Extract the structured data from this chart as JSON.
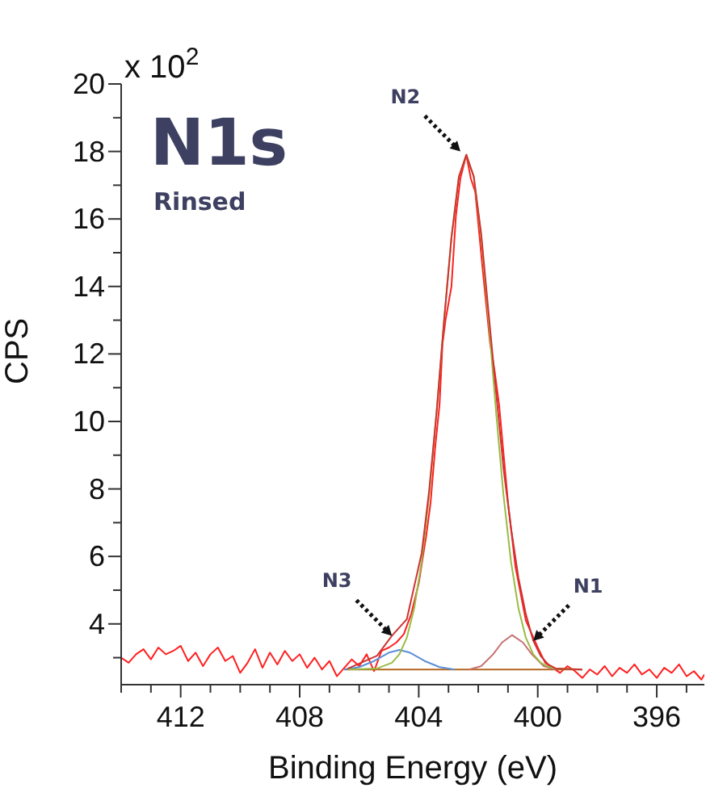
{
  "chart_data": {
    "type": "line",
    "title": "N1s",
    "subtitle": "Rinsed",
    "xlabel": "Binding Energy (eV)",
    "ylabel": "CPS",
    "annotations": [
      "x 10$^{2}$",
      {
        "text": "N2",
        "x": 402.6,
        "y": 18.0
      },
      {
        "text": "N3",
        "x": 404.9,
        "y": 3.65
      },
      {
        "text": "N1",
        "x": 400.15,
        "y": 3.5
      }
    ],
    "xlim": [
      414,
      394.4
    ],
    "xticks": [
      {
        "value": 414,
        "label": null
      },
      {
        "value": 413,
        "label": null
      },
      412,
      {
        "value": 411,
        "label": null
      },
      {
        "value": 410,
        "label": null
      },
      {
        "value": 409,
        "label": null
      },
      408,
      {
        "value": 407,
        "label": null
      },
      {
        "value": 406,
        "label": null
      },
      {
        "value": 405,
        "label": null
      },
      404,
      {
        "value": 403,
        "label": null
      },
      {
        "value": 402,
        "label": null
      },
      {
        "value": 401,
        "label": null
      },
      400,
      {
        "value": 399,
        "label": null
      },
      {
        "value": 398,
        "label": null
      },
      {
        "value": 397,
        "label": null
      },
      396,
      {
        "value": 395,
        "label": null
      }
    ],
    "ylim": [
      2.2,
      20
    ],
    "yticks": [
      {
        "value": 3,
        "label": null
      },
      4,
      {
        "value": 5,
        "label": null
      },
      6,
      {
        "value": 7,
        "label": null
      },
      8,
      {
        "value": 9,
        "label": null
      },
      10,
      {
        "value": 11,
        "label": null
      },
      12,
      {
        "value": 13,
        "label": null
      },
      14,
      {
        "value": 15,
        "label": null
      },
      16,
      {
        "value": 17,
        "label": null
      },
      18,
      {
        "value": 19,
        "label": null
      },
      20
    ],
    "grid": false,
    "legend": false,
    "series": [
      {
        "color": "#ff2020",
        "x": [
          414,
          413.75,
          413.5,
          413.25,
          413,
          412.75,
          412.5,
          412.25,
          412,
          411.75,
          411.5,
          411.25,
          411,
          410.75,
          410.5,
          410.25,
          410,
          409.75,
          409.5,
          409.25,
          409,
          408.75,
          408.5,
          408.25,
          408,
          407.75,
          407.5,
          407.25,
          407,
          406.75,
          406.5,
          406.25,
          406,
          405.75,
          405.5,
          405.25,
          405,
          404.75,
          404.5,
          404.25,
          404,
          403.75,
          403.6,
          403.45,
          403.3,
          403.2,
          403.1,
          402.9,
          402.75,
          402.6,
          402.4,
          402.25,
          402.1,
          401.85,
          401.6,
          401.45,
          401.3,
          401.0,
          400.75,
          400.4,
          400.0,
          399.75,
          399.5,
          399.25,
          399,
          398.75,
          398.5,
          398.25,
          398,
          397.75,
          397.5,
          397.25,
          397,
          396.75,
          396.5,
          396.25,
          396,
          395.75,
          395.5,
          395.25,
          395,
          394.75,
          394.5,
          394.4
        ],
        "values": [
          3.0,
          2.85,
          3.1,
          3.25,
          2.95,
          3.3,
          3.1,
          3.2,
          3.35,
          2.9,
          3.15,
          2.75,
          3.1,
          3.3,
          2.9,
          3.05,
          2.55,
          2.85,
          3.25,
          2.7,
          3.15,
          2.8,
          3.2,
          2.9,
          3.1,
          2.7,
          3.0,
          2.65,
          2.9,
          2.45,
          2.7,
          2.95,
          2.75,
          3.1,
          2.6,
          3.2,
          3.3,
          3.45,
          3.7,
          4.3,
          5.2,
          6.6,
          7.6,
          9.2,
          10.5,
          12.3,
          13.0,
          14.0,
          16.1,
          17.2,
          17.9,
          17.2,
          16.8,
          14.5,
          12.3,
          11.5,
          10.5,
          7.6,
          5.7,
          4.1,
          3.3,
          2.85,
          2.7,
          2.55,
          2.75,
          2.6,
          2.4,
          2.65,
          2.5,
          2.75,
          2.45,
          2.7,
          2.55,
          2.8,
          2.5,
          2.65,
          2.4,
          2.7,
          2.55,
          2.8,
          2.45,
          2.6,
          2.35,
          2.5
        ]
      },
      {
        "color": "#b5651d",
        "x": [
          406.5,
          398.5
        ],
        "values": [
          2.65,
          2.65
        ]
      },
      {
        "color": "#5b8fd6",
        "x": [
          406.5,
          406,
          405.5,
          405,
          404.65,
          404.3,
          403.8,
          403.3,
          402.8
        ],
        "values": [
          2.65,
          2.72,
          2.9,
          3.15,
          3.23,
          3.15,
          2.9,
          2.72,
          2.65
        ]
      },
      {
        "color": "#c87070",
        "x": [
          402.3,
          401.9,
          401.5,
          401.2,
          400.86,
          400.5,
          400.2,
          399.8,
          399.4
        ],
        "values": [
          2.65,
          2.75,
          3.1,
          3.45,
          3.67,
          3.45,
          3.1,
          2.75,
          2.65
        ]
      },
      {
        "color": "#99bb44",
        "x": [
          406.4,
          405.4,
          404.9,
          404.65,
          404.4,
          404.15,
          403.9,
          403.65,
          403.4,
          403.15,
          402.9,
          402.65,
          402.4,
          402.15,
          401.9,
          401.65,
          401.4,
          401.15,
          400.9,
          400.65,
          400.4,
          400.15,
          399.9,
          399.65,
          399.4,
          398.5
        ],
        "values": [
          2.65,
          2.68,
          2.85,
          3.1,
          3.59,
          4.47,
          5.85,
          7.8,
          10.27,
          12.97,
          15.45,
          17.25,
          17.9,
          17.25,
          15.45,
          12.97,
          10.27,
          7.8,
          5.85,
          4.47,
          3.59,
          3.1,
          2.85,
          2.73,
          2.68,
          2.65
        ]
      },
      {
        "color": "#cc3333",
        "x": [
          406.4,
          405.4,
          404.9,
          404.4,
          403.9,
          403.65,
          403.4,
          403.15,
          402.9,
          402.65,
          402.4,
          402.15,
          401.9,
          401.65,
          401.4,
          401.15,
          400.9,
          400.65,
          400.4,
          400.15,
          399.9,
          399.65,
          399.4,
          398.5
        ],
        "values": [
          2.67,
          3.06,
          3.65,
          4.14,
          6.1,
          7.95,
          10.27,
          12.97,
          15.45,
          17.25,
          17.9,
          17.25,
          15.55,
          13.2,
          10.87,
          8.6,
          6.85,
          5.37,
          4.29,
          3.5,
          3.05,
          2.8,
          2.68,
          2.65
        ]
      }
    ]
  }
}
